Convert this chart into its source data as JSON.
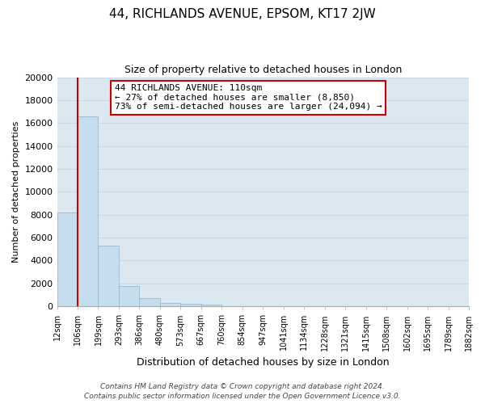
{
  "title": "44, RICHLANDS AVENUE, EPSOM, KT17 2JW",
  "subtitle": "Size of property relative to detached houses in London",
  "xlabel": "Distribution of detached houses by size in London",
  "ylabel": "Number of detached properties",
  "bar_values": [
    8200,
    16600,
    5300,
    1750,
    750,
    300,
    200,
    150,
    0,
    0,
    0,
    0,
    0,
    0,
    0,
    0,
    0,
    0,
    0,
    0
  ],
  "bin_edge_labels": [
    "12sqm",
    "106sqm",
    "199sqm",
    "293sqm",
    "386sqm",
    "480sqm",
    "573sqm",
    "667sqm",
    "760sqm",
    "854sqm",
    "947sqm",
    "1041sqm",
    "1134sqm",
    "1228sqm",
    "1321sqm",
    "1415sqm",
    "1508sqm",
    "1602sqm",
    "1695sqm",
    "1789sqm",
    "1882sqm"
  ],
  "bar_color": "#c5dded",
  "bar_edge_color": "#8ab4cc",
  "vline_color": "#cc0000",
  "vline_bin_edge": 1,
  "ylim": [
    0,
    20000
  ],
  "yticks": [
    0,
    2000,
    4000,
    6000,
    8000,
    10000,
    12000,
    14000,
    16000,
    18000,
    20000
  ],
  "annotation_line1": "44 RICHLANDS AVENUE: 110sqm",
  "annotation_line2": "← 27% of detached houses are smaller (8,850)",
  "annotation_line3": "73% of semi-detached houses are larger (24,094) →",
  "annotation_box_facecolor": "#ffffff",
  "annotation_box_edgecolor": "#cc0000",
  "grid_color": "#c8d8e8",
  "bg_color": "#dce8f0",
  "footer_line1": "Contains HM Land Registry data © Crown copyright and database right 2024.",
  "footer_line2": "Contains public sector information licensed under the Open Government Licence v3.0.",
  "title_fontsize": 11,
  "subtitle_fontsize": 9,
  "xlabel_fontsize": 9,
  "ylabel_fontsize": 8,
  "tick_label_fontsize": 7,
  "ytick_fontsize": 8,
  "annotation_fontsize": 8,
  "footer_fontsize": 6.5
}
